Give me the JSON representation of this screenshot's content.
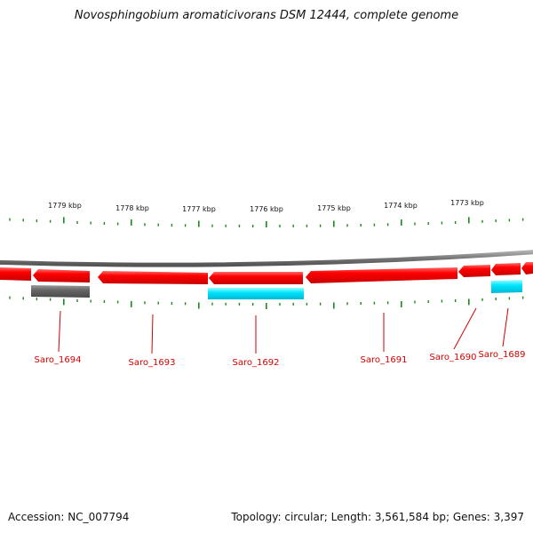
{
  "title": "Novosphingobium aromaticivorans DSM 12444, complete genome",
  "accession": "Accession: NC_007794",
  "summary": "Topology: circular; Length: 3,561,584 bp; Genes: 3,397",
  "colors": {
    "cds": "#ff0000",
    "gene_gray": "#666666",
    "gene_cyan": "#00e6ff",
    "backbone": "#7a7a7a",
    "ticks": "#1a8a1a",
    "label": "#d40000"
  },
  "kbp_labels": [
    "1779 kbp",
    "1778 kbp",
    "1777 kbp",
    "1776 kbp",
    "1775 kbp",
    "1774 kbp",
    "1773 kbp"
  ],
  "genes": [
    {
      "label": "Saro_1694"
    },
    {
      "label": "Saro_1693"
    },
    {
      "label": "Saro_1692"
    },
    {
      "label": "Saro_1691"
    },
    {
      "label": "Saro_1690"
    },
    {
      "label": "Saro_1689"
    }
  ]
}
